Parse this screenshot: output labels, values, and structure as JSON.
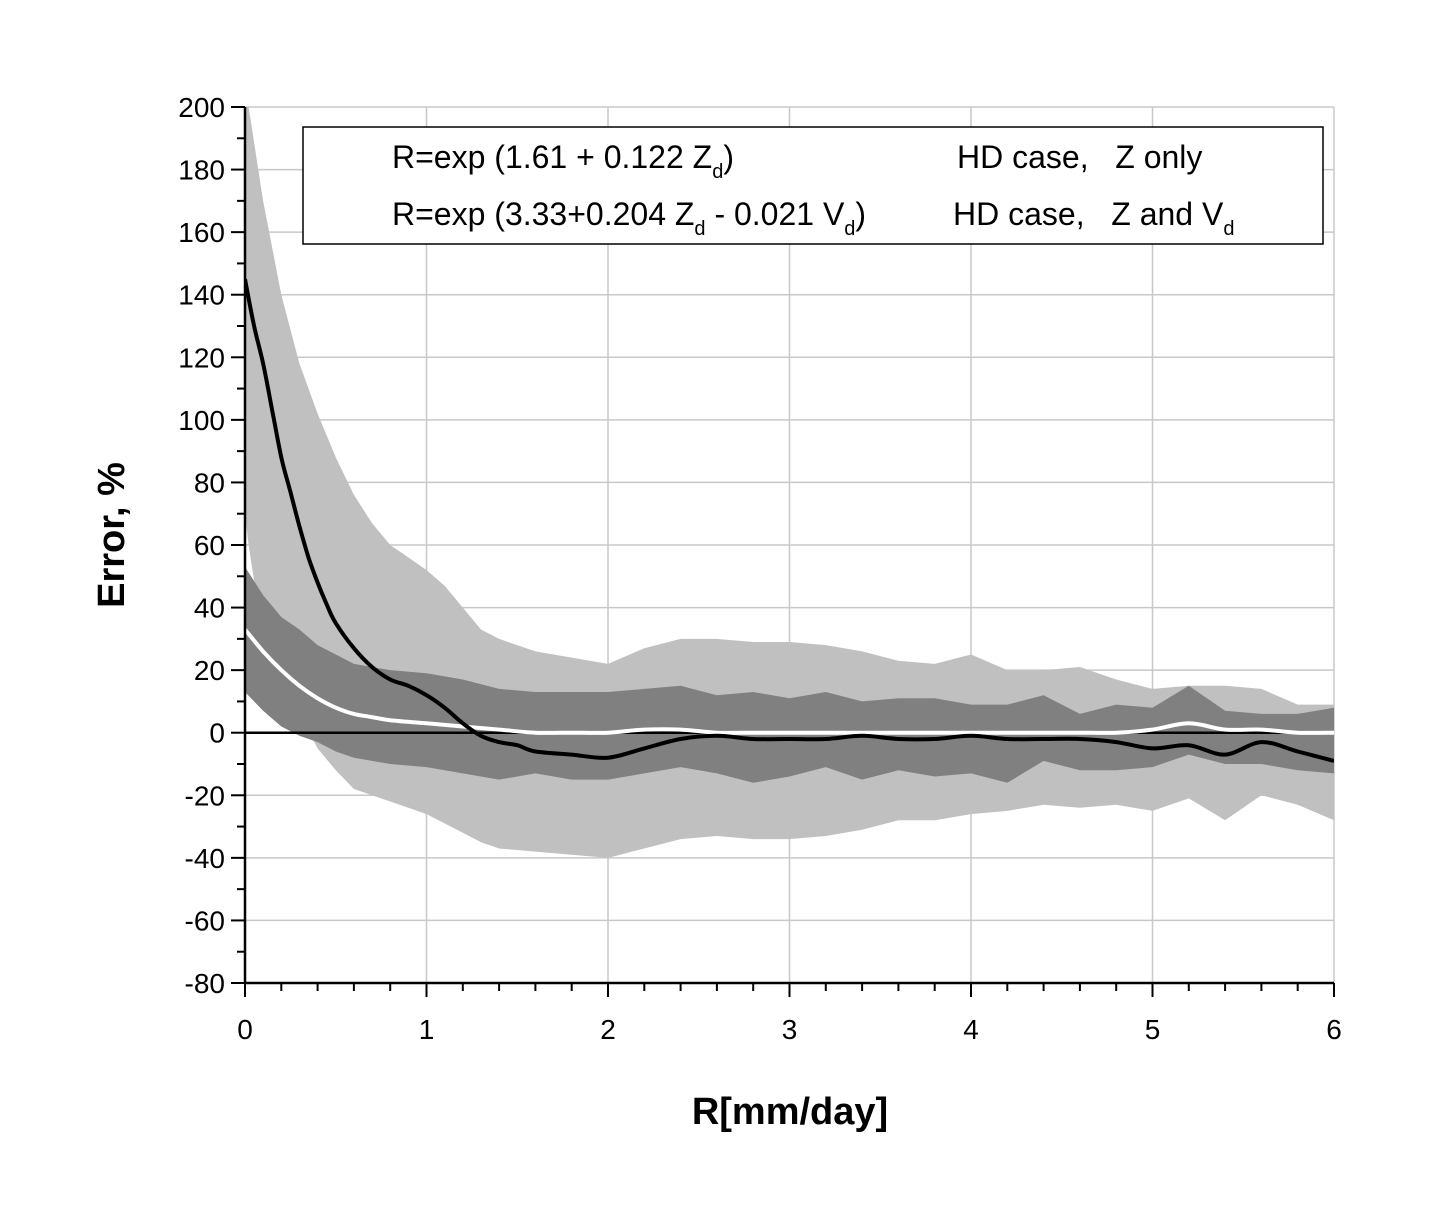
{
  "chart_data": {
    "type": "area",
    "xlabel": "R[mm/day]",
    "ylabel": "Error, %",
    "xlim": [
      0,
      6
    ],
    "ylim": [
      -80,
      200
    ],
    "x_ticks": [
      "0",
      "1",
      "2",
      "3",
      "4",
      "5",
      "6"
    ],
    "y_ticks": [
      "-80",
      "-60",
      "-40",
      "-20",
      "0",
      "20",
      "40",
      "60",
      "80",
      "100",
      "120",
      "140",
      "160",
      "180",
      "200"
    ],
    "grid": true,
    "legend_position": "top",
    "legend": [
      {
        "formula": "R=exp (1.61 + 0.122 Z",
        "formula_sub": "d",
        "formula_end": ")",
        "case": "HD case,   Z only",
        "case_sub": ""
      },
      {
        "formula": "R=exp (3.33+0.204 Z",
        "formula_sub": "d",
        "formula_mid": " - 0.021 V",
        "formula_sub2": "d",
        "formula_end": ")",
        "case": "HD case,   Z and V",
        "case_sub": "d"
      }
    ],
    "colors": {
      "light_band": "#c0c0c0",
      "dark_band": "#808080",
      "z_only_line": "#000000",
      "zv_line": "#ffffff",
      "zero_line": "#000000"
    },
    "light_band": {
      "x": [
        0,
        0.02,
        0.1,
        0.2,
        0.3,
        0.4,
        0.5,
        0.6,
        0.7,
        0.8,
        0.9,
        1.0,
        1.1,
        1.2,
        1.3,
        1.4,
        1.6,
        1.8,
        2.0,
        2.2,
        2.4,
        2.6,
        2.8,
        3.0,
        3.2,
        3.4,
        3.6,
        3.8,
        4.0,
        4.2,
        4.4,
        4.6,
        4.8,
        5.0,
        5.2,
        5.4,
        5.6,
        5.8,
        6.0
      ],
      "upper": [
        200,
        200,
        170,
        140,
        118,
        102,
        88,
        76,
        67,
        60,
        56,
        52,
        47,
        40,
        33,
        30,
        26,
        24,
        22,
        27,
        30,
        30,
        29,
        29,
        28,
        26,
        23,
        22,
        25,
        20,
        20,
        21,
        17,
        14,
        15,
        15,
        14,
        9,
        9
      ],
      "lower": [
        70,
        60,
        30,
        14,
        6,
        -5,
        -12,
        -18,
        -20,
        -22,
        -24,
        -26,
        -29,
        -32,
        -35,
        -37,
        -38,
        -39,
        -40,
        -37,
        -34,
        -33,
        -34,
        -34,
        -33,
        -31,
        -28,
        -28,
        -26,
        -25,
        -23,
        -24,
        -23,
        -25,
        -21,
        -28,
        -20,
        -23,
        -28
      ]
    },
    "dark_band": {
      "x": [
        0,
        0.1,
        0.2,
        0.3,
        0.4,
        0.5,
        0.6,
        0.7,
        0.8,
        1.0,
        1.2,
        1.4,
        1.6,
        1.8,
        2.0,
        2.2,
        2.4,
        2.6,
        2.8,
        3.0,
        3.2,
        3.4,
        3.6,
        3.8,
        4.0,
        4.2,
        4.4,
        4.6,
        4.8,
        5.0,
        5.2,
        5.4,
        5.6,
        5.8,
        6.0
      ],
      "upper": [
        53,
        44,
        37,
        33,
        28,
        25,
        22,
        21,
        20,
        19,
        17,
        14,
        13,
        13,
        13,
        14,
        15,
        12,
        13,
        11,
        13,
        10,
        11,
        11,
        9,
        9,
        12,
        6,
        9,
        8,
        15,
        7,
        6,
        6,
        8
      ],
      "lower": [
        13,
        7,
        2,
        -1,
        -3,
        -6,
        -8,
        -9,
        -10,
        -11,
        -13,
        -15,
        -13,
        -15,
        -15,
        -13,
        -11,
        -13,
        -16,
        -14,
        -11,
        -15,
        -12,
        -14,
        -13,
        -16,
        -9,
        -12,
        -12,
        -11,
        -7,
        -10,
        -10,
        -12,
        -13
      ]
    },
    "series": [
      {
        "name": "R=exp (1.61 + 0.122 Zd)",
        "x": [
          0,
          0.05,
          0.1,
          0.15,
          0.2,
          0.25,
          0.3,
          0.35,
          0.4,
          0.45,
          0.5,
          0.6,
          0.7,
          0.8,
          0.9,
          1.0,
          1.1,
          1.2,
          1.3,
          1.4,
          1.5,
          1.6,
          1.8,
          2.0,
          2.2,
          2.4,
          2.6,
          2.8,
          3.0,
          3.2,
          3.4,
          3.6,
          3.8,
          4.0,
          4.2,
          4.4,
          4.6,
          4.8,
          5.0,
          5.2,
          5.4,
          5.6,
          5.8,
          6.0
        ],
        "y": [
          145,
          130,
          118,
          103,
          88,
          77,
          66,
          56,
          48,
          41,
          35,
          27,
          21,
          17,
          15,
          12,
          8,
          3,
          -1,
          -3,
          -4,
          -6,
          -7,
          -8,
          -5,
          -2,
          -1,
          -2,
          -2,
          -2,
          -1,
          -2,
          -2,
          -1,
          -2,
          -2,
          -2,
          -3,
          -5,
          -4,
          -7,
          -3,
          -6,
          -9
        ]
      },
      {
        "name": "R=exp (3.33+0.204 Zd - 0.021 Vd)",
        "x": [
          0,
          0.1,
          0.2,
          0.3,
          0.4,
          0.5,
          0.6,
          0.7,
          0.8,
          1.0,
          1.2,
          1.4,
          1.6,
          1.8,
          2.0,
          2.2,
          2.4,
          2.6,
          2.8,
          3.0,
          3.4,
          3.8,
          4.0,
          4.2,
          4.4,
          4.6,
          4.8,
          5.0,
          5.2,
          5.4,
          5.6,
          5.8,
          6.0
        ],
        "y": [
          33,
          26,
          20,
          15,
          11,
          8,
          6,
          5,
          4,
          3,
          2,
          1,
          0,
          0,
          0,
          1,
          1,
          0,
          0,
          0,
          0,
          0,
          0,
          0,
          0,
          0,
          0,
          1,
          3,
          1,
          1,
          0,
          0
        ]
      }
    ]
  }
}
